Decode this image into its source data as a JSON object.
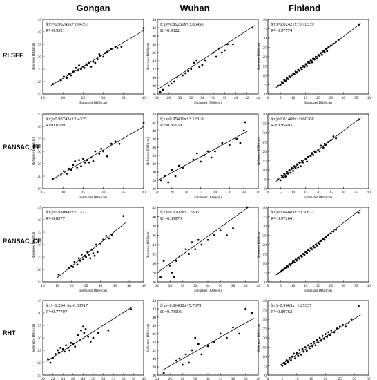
{
  "columns": [
    "Gongan",
    "Wuhan",
    "Finland"
  ],
  "rows": [
    "RLSEF",
    "RANSAC_EF",
    "RANSAC_CF",
    "RHT"
  ],
  "chart_data": [
    {
      "type": "scatter",
      "row": "RLSEF",
      "column": "Gongan",
      "equation": "f(x)=0.96245x+2.04391",
      "r2": "R²=0.9521",
      "xlabel": "Estimated DBH(cm)",
      "ylabel": "Reference DBH(cm)",
      "xlim": [
        15,
        40
      ],
      "ylim": [
        15,
        45
      ],
      "xticks": [
        15,
        20,
        25,
        30,
        35,
        40
      ],
      "yticks": [
        15,
        20,
        25,
        30,
        35,
        40,
        45
      ],
      "slope": 0.96245,
      "intercept": 2.04391,
      "x": [
        17.5,
        19.5,
        20.2,
        21,
        21.5,
        22,
        22.6,
        23.2,
        23.8,
        24,
        24.5,
        25,
        25.3,
        25.8,
        26,
        26.4,
        27,
        27.5,
        28,
        28.6,
        29,
        29.2,
        30,
        30.5,
        31,
        32,
        33,
        33.5,
        34.5,
        40
      ],
      "y": [
        19,
        20.5,
        22,
        21.5,
        23,
        22.5,
        24,
        25.5,
        24.5,
        26.5,
        25,
        26,
        25.5,
        27,
        26.5,
        27.5,
        26,
        28,
        27.5,
        29,
        31,
        30.5,
        30,
        31.5,
        32,
        33,
        34,
        33.5,
        34,
        41.5
      ]
    },
    {
      "type": "scatter",
      "row": "RLSEF",
      "column": "Wuhan",
      "equation": "f(x)=0.89251x+3.85456",
      "r2": "R²=0.9322",
      "xlabel": "Estimated DBH(cm)",
      "ylabel": "Reference DBH(cm)",
      "xlim": [
        26,
        44
      ],
      "ylim": [
        26,
        44
      ],
      "xticks": [
        26,
        28,
        30,
        32,
        34,
        36,
        38,
        40,
        42,
        44
      ],
      "yticks": [
        26,
        28,
        30,
        32,
        34,
        36,
        38,
        40,
        42,
        44
      ],
      "slope": 0.89251,
      "intercept": 3.85456,
      "x": [
        26.5,
        27,
        28,
        28.5,
        29,
        29.5,
        30.5,
        31,
        31.5,
        32,
        32.5,
        33,
        33.5,
        34,
        34.5,
        36,
        36.5,
        37,
        37.5,
        38,
        38.5,
        39.5,
        43
      ],
      "y": [
        26.5,
        27,
        28,
        28.5,
        29,
        30,
        30.5,
        31,
        31.5,
        32,
        33.5,
        34,
        32.5,
        33,
        34,
        36,
        35,
        37,
        36,
        36.5,
        38,
        38,
        42
      ]
    },
    {
      "type": "scatter",
      "row": "RLSEF",
      "column": "Finland",
      "equation": "f(x)=1.02421x+0.10539",
      "r2": "R²=0.97774",
      "xlabel": "Estimated DBH(cm)",
      "ylabel": "Reference DBH(cm)",
      "xlim": [
        0,
        40
      ],
      "ylim": [
        0,
        40
      ],
      "xticks": [
        0,
        5,
        10,
        15,
        20,
        25,
        30,
        35,
        40
      ],
      "yticks": [
        0,
        5,
        10,
        15,
        20,
        25,
        30,
        35,
        40
      ],
      "slope": 1.02421,
      "intercept": 0.10539,
      "x": [
        4,
        5,
        5.5,
        6,
        6.5,
        7,
        7.5,
        8,
        8.5,
        9,
        9.5,
        10,
        10.5,
        11,
        11.5,
        12,
        12.5,
        13,
        13.5,
        14,
        14.5,
        15,
        15.5,
        16,
        16.5,
        17,
        17.5,
        18,
        18.5,
        19,
        19.5,
        20,
        20.5,
        21,
        21.5,
        22,
        22.5,
        23,
        23.5,
        24,
        25,
        26,
        27,
        28,
        36
      ],
      "y": [
        4.5,
        5,
        6.5,
        6,
        7.5,
        7,
        8.5,
        8,
        9.5,
        9,
        10,
        11,
        10.5,
        12,
        11.5,
        13,
        12.5,
        14,
        13,
        15,
        14.5,
        16,
        15,
        17,
        16.5,
        18,
        17,
        19,
        18.5,
        20,
        19,
        21,
        20.5,
        22,
        21,
        23,
        22.5,
        24,
        23,
        25,
        26,
        27,
        28,
        29,
        37
      ]
    },
    {
      "type": "scatter",
      "row": "RANSAC_EF",
      "column": "Gongan",
      "equation": "f(x)=0.93743x+2.4335",
      "r2": "R²=0.8709",
      "xlabel": "Estimated DBH(cm)",
      "ylabel": "Reference DBH(cm)",
      "xlim": [
        15,
        40
      ],
      "ylim": [
        15,
        45
      ],
      "xticks": [
        15,
        20,
        25,
        30,
        35,
        40
      ],
      "yticks": [
        15,
        20,
        25,
        30,
        35,
        40,
        45
      ],
      "slope": 0.93743,
      "intercept": 2.4335,
      "x": [
        17.5,
        19.5,
        20.2,
        21,
        21.5,
        22,
        22.5,
        23,
        23.5,
        24,
        24.5,
        25,
        25.5,
        26,
        26.5,
        27,
        27.5,
        28,
        29,
        29.5,
        30,
        31,
        32,
        33,
        34,
        40
      ],
      "y": [
        19,
        20.5,
        22,
        21,
        23,
        22.5,
        24.5,
        26,
        23.5,
        26.5,
        24,
        27,
        25.5,
        26.5,
        25.5,
        27.5,
        26,
        30,
        29,
        31,
        30,
        28,
        33,
        34,
        33,
        41.5
      ]
    },
    {
      "type": "scatter",
      "row": "RANSAC_EF",
      "column": "Wuhan",
      "equation": "f(x)=0.95401x+3.12818",
      "r2": "R²=0.85639",
      "xlabel": "Estimated DBH(cm)",
      "ylabel": "Reference DBH(cm)",
      "xlim": [
        26,
        40
      ],
      "ylim": [
        26,
        44
      ],
      "xticks": [
        26,
        28,
        30,
        32,
        34,
        36,
        38,
        40
      ],
      "yticks": [
        26,
        28,
        30,
        32,
        34,
        36,
        38,
        40,
        42,
        44
      ],
      "slope": 0.95401,
      "intercept": 3.12818,
      "x": [
        26.5,
        27,
        27.5,
        28,
        28.5,
        29,
        29.5,
        31,
        31.5,
        32,
        32.5,
        33,
        33.5,
        34,
        35,
        36,
        37,
        37.5,
        38,
        38.2
      ],
      "y": [
        28,
        29,
        27.5,
        30.5,
        29,
        31.5,
        31,
        33,
        34.5,
        32.5,
        34,
        35,
        33.5,
        35,
        37,
        36.5,
        38,
        37,
        40,
        42
      ]
    },
    {
      "type": "scatter",
      "row": "RANSAC_EF",
      "column": "Finland",
      "equation": "f(x)=1.01469x+0.60268",
      "r2": "R²=0.95493",
      "xlabel": "Estimated DBH(cm)",
      "ylabel": "Reference DBH(cm)",
      "xlim": [
        0,
        40
      ],
      "ylim": [
        0,
        40
      ],
      "xticks": [
        0,
        5,
        10,
        15,
        20,
        25,
        30,
        35,
        40
      ],
      "yticks": [
        0,
        5,
        10,
        15,
        20,
        25,
        30,
        35,
        40
      ],
      "slope": 1.01469,
      "intercept": 0.60268,
      "x": [
        4,
        5,
        5.5,
        6,
        6.5,
        7,
        7.5,
        8,
        8.5,
        9,
        9.5,
        10,
        10.5,
        11,
        11.5,
        12,
        12.5,
        13,
        13.5,
        14,
        15,
        15.5,
        16,
        17,
        17.5,
        18,
        18.5,
        19,
        20,
        20.5,
        21,
        22,
        22.5,
        23,
        24,
        25,
        26,
        27,
        36
      ],
      "y": [
        5,
        4.5,
        7,
        6,
        8,
        6.5,
        9,
        8,
        10,
        8.5,
        11,
        9.5,
        12,
        11,
        13,
        11.5,
        14,
        12,
        15,
        14,
        16,
        14.5,
        17,
        17.5,
        19,
        18,
        20,
        19.5,
        21,
        20,
        23,
        22,
        24,
        23.5,
        25,
        26,
        28,
        27,
        37
      ]
    },
    {
      "type": "scatter",
      "row": "RANSAC_CF",
      "column": "Gongan",
      "equation": "f(x)=0.93094x+2.7377",
      "r2": "R²=0.8377",
      "xlabel": "Estimated DBH(cm)",
      "ylabel": "Reference DBH(cm)",
      "xlim": [
        10,
        45
      ],
      "ylim": [
        15,
        45
      ],
      "xticks": [
        10,
        15,
        20,
        25,
        30,
        35,
        40,
        45
      ],
      "yticks": [
        15,
        20,
        25,
        30,
        35,
        40,
        45
      ],
      "slope": 0.93094,
      "intercept": 2.7377,
      "x": [
        15.5,
        19,
        20,
        20.5,
        21,
        22,
        22.5,
        23,
        23.5,
        24,
        24.5,
        25,
        25.5,
        26,
        26.5,
        27,
        27.5,
        28,
        28.5,
        29,
        30,
        31,
        32,
        33,
        34,
        38
      ],
      "y": [
        18,
        20.5,
        21.5,
        21,
        23,
        22,
        24.5,
        23.5,
        26,
        24,
        25.5,
        25,
        27,
        26,
        24.5,
        28,
        26.5,
        25.5,
        30,
        27,
        30.5,
        32,
        33.5,
        32.5,
        34,
        41.5
      ]
    },
    {
      "type": "scatter",
      "row": "RANSAC_CF",
      "column": "Wuhan",
      "equation": "f(x)=0.9702x+2.7805",
      "r2": "R²=0.85973",
      "xlabel": "Estimated DBH(cm)",
      "ylabel": "Reference DBH(cm)",
      "xlim": [
        26,
        42
      ],
      "ylim": [
        26,
        42
      ],
      "xticks": [
        26,
        28,
        30,
        32,
        34,
        36,
        38,
        40,
        42
      ],
      "yticks": [
        26,
        28,
        30,
        32,
        34,
        36,
        38,
        40,
        42
      ],
      "slope": 0.9702,
      "intercept": 2.7805,
      "x": [
        26.5,
        27,
        28,
        28.3,
        28.6,
        29,
        29.5,
        30.5,
        31,
        31.5,
        32,
        32.5,
        33,
        34,
        35,
        36,
        37,
        38,
        40.2
      ],
      "y": [
        27,
        30.5,
        29.5,
        28,
        27,
        30.5,
        31.5,
        33,
        32,
        34.5,
        33,
        35,
        34,
        35,
        36,
        37,
        36,
        37.5,
        42
      ]
    },
    {
      "type": "scatter",
      "row": "RANSAC_CF",
      "column": "Finland",
      "equation": "f(x)=1.04683x+0.30623",
      "r2": "R²=0.97264",
      "xlabel": "Estimated DBH(cm)",
      "ylabel": "Reference DBH(cm)",
      "xlim": [
        0,
        40
      ],
      "ylim": [
        0,
        40
      ],
      "xticks": [
        0,
        5,
        10,
        15,
        20,
        25,
        30,
        35,
        40
      ],
      "yticks": [
        0,
        5,
        10,
        15,
        20,
        25,
        30,
        35,
        40
      ],
      "slope": 1.04683,
      "intercept": 0.30623,
      "x": [
        4,
        5,
        5.5,
        6,
        6.5,
        7,
        7.5,
        8,
        8.5,
        9,
        9.5,
        10,
        10.5,
        11,
        11.5,
        12,
        12.5,
        13,
        13.5,
        14,
        14.5,
        15,
        15.5,
        16,
        16.5,
        17,
        17.5,
        18,
        18.5,
        19,
        19.5,
        20,
        20.5,
        21,
        22,
        22.5,
        23,
        24,
        25,
        26,
        27,
        36
      ],
      "y": [
        4.5,
        5.5,
        6,
        6.5,
        7,
        7.5,
        8.5,
        8,
        9.5,
        9,
        10,
        11,
        10.5,
        12,
        11.5,
        13,
        12.5,
        14,
        13.5,
        15,
        14.5,
        16,
        15.5,
        17,
        16.5,
        18,
        17.5,
        19,
        18.5,
        20,
        19.5,
        21,
        20.5,
        22,
        23,
        22.5,
        24,
        25,
        26,
        27,
        28,
        37
      ]
    },
    {
      "type": "scatter",
      "row": "RHT",
      "column": "Gongan",
      "equation": "f(x)=1.28416x-6.03517",
      "r2": "R²=0.77707",
      "xlabel": "Estimated DBH(cm)",
      "ylabel": "Reference DBH(cm)",
      "xlim": [
        20,
        40
      ],
      "ylim": [
        15,
        45
      ],
      "xticks": [
        20,
        22,
        24,
        26,
        28,
        30,
        32,
        34,
        36,
        38,
        40
      ],
      "yticks": [
        15,
        20,
        25,
        30,
        35,
        40,
        45
      ],
      "slope": 1.28416,
      "intercept": -6.03517,
      "x": [
        21,
        21.5,
        22,
        22.5,
        23,
        23.2,
        23.5,
        24,
        24.3,
        24.6,
        25,
        25.3,
        25.6,
        26,
        26.4,
        27,
        27.3,
        27.6,
        28,
        28.2,
        28.5,
        29,
        29.5,
        30,
        31,
        33,
        37.5
      ],
      "y": [
        21.5,
        20,
        22,
        23.5,
        25,
        24,
        26,
        25.5,
        24.5,
        27,
        26,
        25,
        28,
        27.5,
        26.5,
        31,
        29,
        33,
        34.5,
        32,
        33.5,
        30.5,
        28.5,
        30,
        32,
        33,
        41.5
      ]
    },
    {
      "type": "scatter",
      "row": "RHT",
      "column": "Wuhan",
      "equation": "f(x)=0.86488x+5.7379",
      "r2": "R²=0.73906",
      "xlabel": "Estimated DBH(cm)",
      "ylabel": "Reference DBH(cm)",
      "xlim": [
        24,
        40
      ],
      "ylim": [
        26,
        44
      ],
      "xticks": [
        24,
        26,
        28,
        30,
        32,
        34,
        36,
        38,
        40
      ],
      "yticks": [
        26,
        28,
        30,
        32,
        34,
        36,
        38,
        40,
        42,
        44
      ],
      "slope": 0.86488,
      "intercept": 5.7379,
      "x": [
        25,
        27,
        27.5,
        28,
        28.5,
        29,
        29.5,
        30,
        30.5,
        31,
        32,
        33,
        34,
        35,
        36,
        37,
        38,
        39
      ],
      "y": [
        26.5,
        29.5,
        30,
        28.5,
        31,
        29,
        32,
        35,
        33.5,
        31,
        33,
        34,
        36,
        35,
        37.5,
        36,
        42,
        41
      ]
    },
    {
      "type": "scatter",
      "row": "RHT",
      "column": "Finland",
      "equation": "f(x)=0.9663x+1.25337",
      "r2": "R²=0.89762",
      "xlabel": "Estimated DBH(cm)",
      "ylabel": "Reference DBH(cm)",
      "xlim": [
        0,
        35
      ],
      "ylim": [
        0,
        40
      ],
      "xticks": [
        0,
        5,
        10,
        15,
        20,
        25,
        30,
        35
      ],
      "yticks": [
        0,
        5,
        10,
        15,
        20,
        25,
        30,
        35,
        40
      ],
      "slope": 0.9663,
      "intercept": 1.25337,
      "x": [
        5,
        5.5,
        6,
        6.5,
        7,
        7.5,
        8,
        8.5,
        9,
        9.5,
        10,
        10.5,
        11,
        11.5,
        12,
        12.5,
        13,
        13.5,
        14,
        14.5,
        15,
        15.5,
        16,
        16.5,
        17,
        17.5,
        18,
        18.5,
        19,
        19.5,
        20,
        20.5,
        21,
        21.5,
        22,
        23,
        24,
        25,
        26,
        27,
        28,
        29,
        31.5
      ],
      "y": [
        5,
        6.5,
        6,
        8,
        7,
        9.5,
        8,
        10,
        11.5,
        9,
        12,
        10.5,
        13.5,
        11,
        14,
        12.5,
        15,
        13,
        16,
        14.5,
        17,
        15.5,
        18,
        16,
        19,
        17.5,
        20,
        18.5,
        21,
        19.5,
        22,
        20.5,
        23,
        21.5,
        24,
        23,
        25,
        26,
        27,
        26,
        28,
        30,
        37
      ]
    }
  ]
}
